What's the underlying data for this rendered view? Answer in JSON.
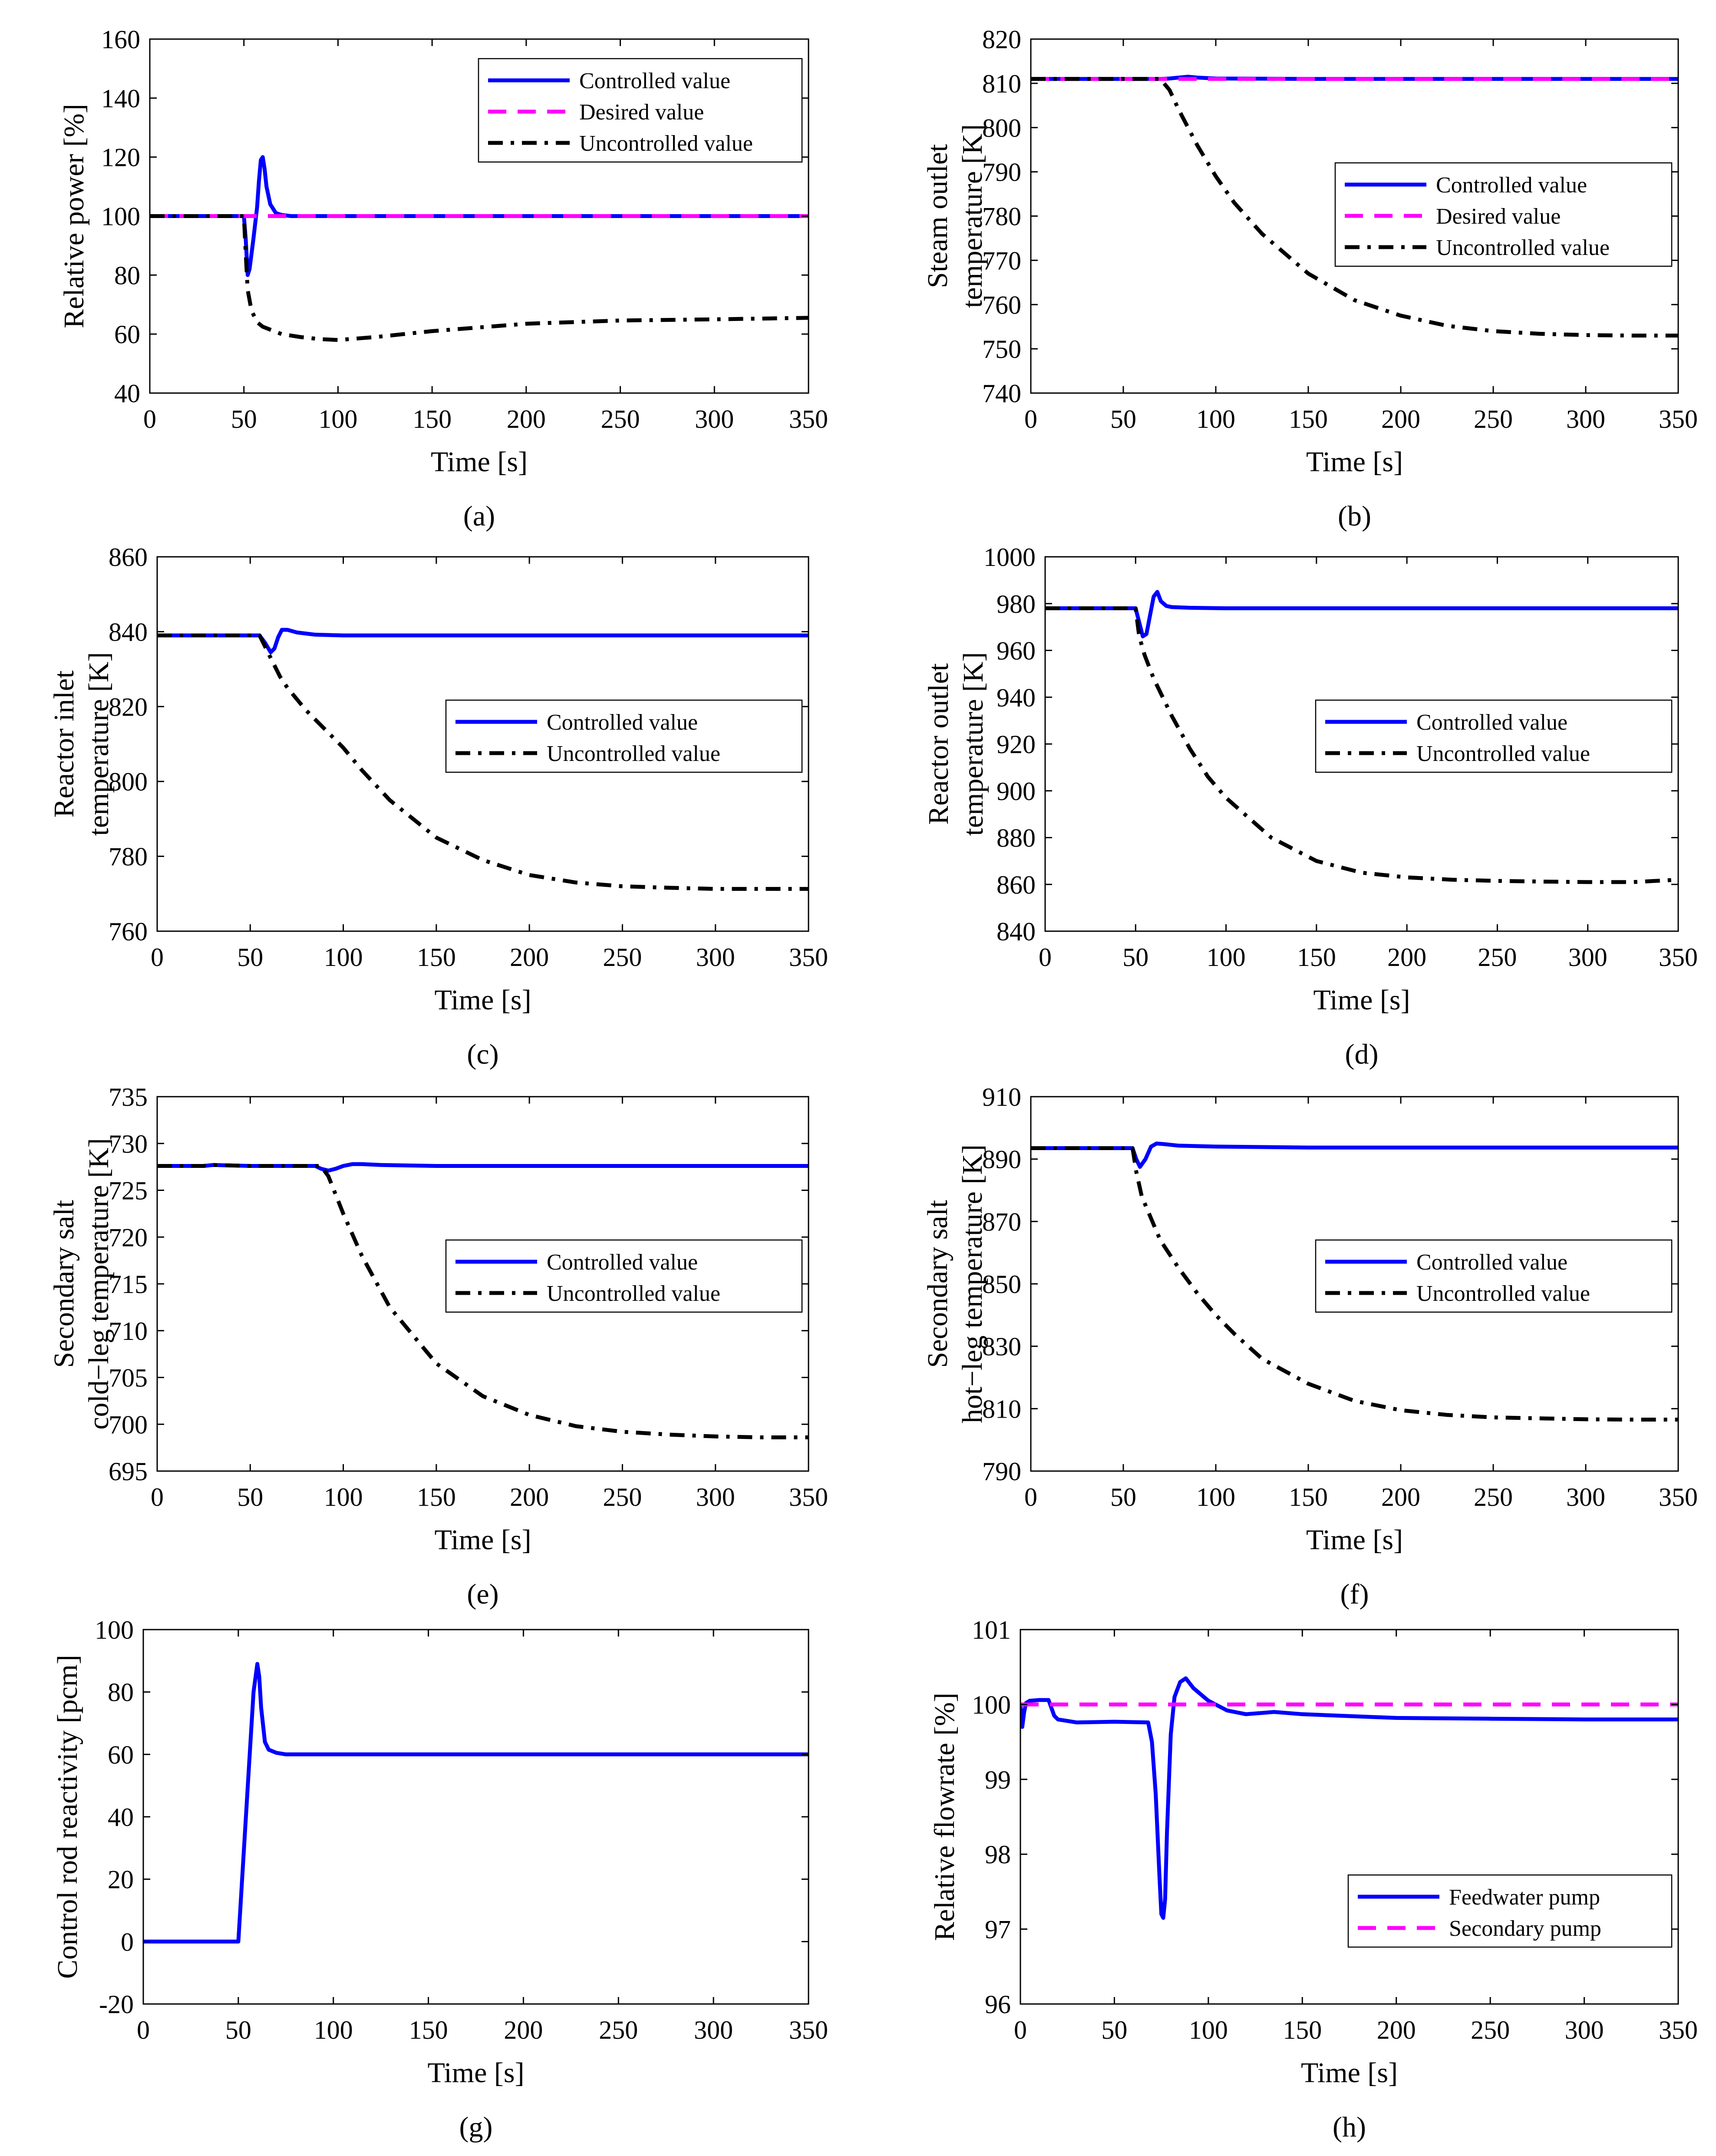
{
  "chart_data": [
    {
      "id": "a",
      "type": "line",
      "caption": "(a)",
      "xlabel": "Time [s]",
      "ylabel": [
        "Relative power [%]"
      ],
      "xlim": [
        0,
        350
      ],
      "ylim": [
        40,
        160
      ],
      "xticks": [
        0,
        50,
        100,
        150,
        200,
        250,
        300,
        350
      ],
      "yticks": [
        40,
        60,
        80,
        100,
        120,
        140,
        160
      ],
      "legend_position": "top-right",
      "series": [
        {
          "name": "Controlled value",
          "color": "#0000ff",
          "style": "solid",
          "x": [
            0,
            50,
            51,
            52,
            53,
            55,
            57,
            58,
            59,
            60,
            61,
            62,
            64,
            67,
            70,
            75,
            80,
            100,
            350
          ],
          "y": [
            100,
            100,
            92,
            80,
            82,
            92,
            103,
            112,
            119,
            120,
            116,
            110,
            104,
            101,
            100.4,
            100,
            100,
            100,
            100
          ]
        },
        {
          "name": "Desired value",
          "color": "#ff00ff",
          "style": "dashed",
          "x": [
            0,
            350
          ],
          "y": [
            100,
            100
          ]
        },
        {
          "name": "Uncontrolled value",
          "color": "#000000",
          "style": "dashdot",
          "x": [
            0,
            50,
            51,
            52,
            54,
            57,
            60,
            70,
            80,
            90,
            100,
            120,
            150,
            200,
            250,
            300,
            350
          ],
          "y": [
            100,
            100,
            87,
            75,
            68,
            64,
            62.5,
            60,
            59,
            58.3,
            58,
            59,
            61,
            63.5,
            64.6,
            65,
            65.5
          ]
        }
      ]
    },
    {
      "id": "b",
      "type": "line",
      "caption": "(b)",
      "xlabel": "Time [s]",
      "ylabel": [
        "Steam outlet",
        "temperature [K]"
      ],
      "xlim": [
        0,
        350
      ],
      "ylim": [
        740,
        820
      ],
      "xticks": [
        0,
        50,
        100,
        150,
        200,
        250,
        300,
        350
      ],
      "yticks": [
        740,
        750,
        760,
        770,
        780,
        790,
        800,
        810,
        820
      ],
      "legend_position": "middle-right",
      "series": [
        {
          "name": "Controlled value",
          "color": "#0000ff",
          "style": "solid",
          "x": [
            0,
            70,
            75,
            80,
            85,
            90,
            100,
            150,
            350
          ],
          "y": [
            811,
            811,
            811.1,
            811.3,
            811.5,
            811.3,
            811.1,
            811,
            811
          ]
        },
        {
          "name": "Desired value",
          "color": "#ff00ff",
          "style": "dashed",
          "x": [
            0,
            350
          ],
          "y": [
            811,
            811
          ]
        },
        {
          "name": "Uncontrolled value",
          "color": "#000000",
          "style": "dashdot",
          "x": [
            0,
            70,
            75,
            80,
            90,
            100,
            110,
            125,
            150,
            175,
            200,
            225,
            250,
            275,
            300,
            325,
            350
          ],
          "y": [
            811,
            811,
            808.5,
            804,
            796,
            789,
            783,
            776,
            767,
            761,
            757.5,
            755.2,
            754,
            753.4,
            753.1,
            753,
            753
          ]
        }
      ]
    },
    {
      "id": "c",
      "type": "line",
      "caption": "(c)",
      "xlabel": "Time [s]",
      "ylabel": [
        "Reactor inlet",
        "temperature [K]"
      ],
      "xlim": [
        0,
        350
      ],
      "ylim": [
        760,
        860
      ],
      "xticks": [
        0,
        50,
        100,
        150,
        200,
        250,
        300,
        350
      ],
      "yticks": [
        760,
        780,
        800,
        820,
        840,
        860
      ],
      "legend_position": "middle-right",
      "series": [
        {
          "name": "Controlled value",
          "color": "#0000ff",
          "style": "solid",
          "x": [
            0,
            55,
            58,
            61,
            63,
            65,
            67,
            70,
            75,
            85,
            100,
            350
          ],
          "y": [
            839,
            839,
            837,
            834.5,
            835.5,
            838.5,
            840.5,
            840.5,
            839.8,
            839.2,
            839,
            839
          ]
        },
        {
          "name": "Uncontrolled value",
          "color": "#000000",
          "style": "dashdot",
          "x": [
            0,
            55,
            58,
            62,
            66,
            70,
            80,
            90,
            100,
            110,
            125,
            150,
            175,
            200,
            225,
            250,
            275,
            300,
            350
          ],
          "y": [
            839,
            839,
            836,
            832,
            828,
            825,
            819,
            814,
            809,
            803,
            795,
            785,
            779,
            775,
            773,
            772,
            771.6,
            771.3,
            771.3
          ]
        }
      ]
    },
    {
      "id": "d",
      "type": "line",
      "caption": "(d)",
      "xlabel": "Time [s]",
      "ylabel": [
        "Reactor outlet",
        "temperature [K]"
      ],
      "xlim": [
        0,
        350
      ],
      "ylim": [
        840,
        1000
      ],
      "xticks": [
        0,
        50,
        100,
        150,
        200,
        250,
        300,
        350
      ],
      "yticks": [
        840,
        860,
        880,
        900,
        920,
        940,
        960,
        980,
        1000
      ],
      "legend_position": "middle-right",
      "series": [
        {
          "name": "Controlled value",
          "color": "#0000ff",
          "style": "solid",
          "x": [
            0,
            50,
            52,
            54,
            56,
            58,
            60,
            62,
            64,
            67,
            70,
            80,
            100,
            350
          ],
          "y": [
            978,
            978,
            972,
            966,
            967,
            975,
            983,
            985,
            981,
            979,
            978.5,
            978.2,
            978,
            978
          ]
        },
        {
          "name": "Uncontrolled value",
          "color": "#000000",
          "style": "dashdot",
          "x": [
            0,
            50,
            52,
            55,
            60,
            70,
            80,
            90,
            100,
            125,
            150,
            175,
            200,
            225,
            250,
            275,
            300,
            325,
            350
          ],
          "y": [
            978,
            978,
            966,
            958,
            948,
            932,
            918,
            906,
            897,
            880,
            870,
            865,
            863,
            862,
            861.5,
            861.2,
            861,
            861,
            862
          ]
        }
      ]
    },
    {
      "id": "e",
      "type": "line",
      "caption": "(e)",
      "xlabel": "Time [s]",
      "ylabel": [
        "Secondary salt",
        "cold−leg temperature [K]"
      ],
      "xlim": [
        0,
        350
      ],
      "ylim": [
        695,
        735
      ],
      "xticks": [
        0,
        50,
        100,
        150,
        200,
        250,
        300,
        350
      ],
      "yticks": [
        695,
        700,
        705,
        710,
        715,
        720,
        725,
        730,
        735
      ],
      "legend_position": "middle-right",
      "series": [
        {
          "name": "Controlled value",
          "color": "#0000ff",
          "style": "solid",
          "x": [
            0,
            25,
            30,
            50,
            85,
            88,
            92,
            96,
            100,
            105,
            110,
            120,
            150,
            350
          ],
          "y": [
            727.6,
            727.6,
            727.7,
            727.6,
            727.6,
            727.3,
            727.1,
            727.3,
            727.6,
            727.8,
            727.8,
            727.7,
            727.6,
            727.6
          ]
        },
        {
          "name": "Uncontrolled value",
          "color": "#000000",
          "style": "dashdot",
          "x": [
            0,
            25,
            30,
            50,
            88,
            92,
            95,
            100,
            110,
            125,
            150,
            175,
            200,
            225,
            250,
            275,
            300,
            325,
            350
          ],
          "y": [
            727.6,
            727.6,
            727.7,
            727.6,
            727.6,
            726.5,
            725,
            722.5,
            718,
            712.5,
            706.5,
            703,
            701,
            699.8,
            699.2,
            698.9,
            698.7,
            698.6,
            698.6
          ]
        }
      ]
    },
    {
      "id": "f",
      "type": "line",
      "caption": "(f)",
      "xlabel": "Time [s]",
      "ylabel": [
        "Secondary salt",
        "hot−leg temperature [K]"
      ],
      "xlim": [
        0,
        350
      ],
      "ylim": [
        790,
        910
      ],
      "xticks": [
        0,
        50,
        100,
        150,
        200,
        250,
        300,
        350
      ],
      "yticks": [
        790,
        810,
        830,
        850,
        870,
        890,
        910
      ],
      "legend_position": "middle-right",
      "series": [
        {
          "name": "Controlled value",
          "color": "#0000ff",
          "style": "solid",
          "x": [
            0,
            55,
            57,
            59,
            62,
            65,
            68,
            72,
            80,
            100,
            150,
            350
          ],
          "y": [
            893.5,
            893.5,
            890,
            887.5,
            890,
            894,
            895,
            894.8,
            894.3,
            894,
            893.7,
            893.7
          ]
        },
        {
          "name": "Uncontrolled value",
          "color": "#000000",
          "style": "dashdot",
          "x": [
            0,
            55,
            57,
            60,
            65,
            70,
            80,
            90,
            100,
            110,
            125,
            150,
            175,
            200,
            225,
            250,
            275,
            300,
            325,
            350
          ],
          "y": [
            893.5,
            893.5,
            886,
            878,
            871,
            864,
            855,
            847,
            840,
            834,
            826,
            818,
            812.5,
            809.5,
            808,
            807.2,
            806.9,
            806.6,
            806.5,
            806.5
          ]
        }
      ]
    },
    {
      "id": "g",
      "type": "line",
      "caption": "(g)",
      "xlabel": "Time [s]",
      "ylabel": [
        "Control rod reactivity [pcm]"
      ],
      "xlim": [
        0,
        350
      ],
      "ylim": [
        -20,
        100
      ],
      "xticks": [
        0,
        50,
        100,
        150,
        200,
        250,
        300,
        350
      ],
      "yticks": [
        -20,
        0,
        20,
        40,
        60,
        80,
        100
      ],
      "legend_position": "none",
      "series": [
        {
          "name": "Control rod reactivity",
          "color": "#0000ff",
          "style": "solid",
          "x": [
            0,
            50,
            52,
            55,
            58,
            60,
            61,
            62,
            64,
            66,
            70,
            75,
            80,
            350
          ],
          "y": [
            0,
            0,
            20,
            50,
            80,
            89,
            85,
            75,
            64,
            61.5,
            60.5,
            60,
            60,
            60
          ]
        }
      ]
    },
    {
      "id": "h",
      "type": "line",
      "caption": "(h)",
      "xlabel": "Time [s]",
      "ylabel": [
        "Relative flowrate [%]"
      ],
      "xlim": [
        0,
        350
      ],
      "ylim": [
        96,
        101
      ],
      "xticks": [
        0,
        50,
        100,
        150,
        200,
        250,
        300,
        350
      ],
      "yticks": [
        96,
        97,
        98,
        99,
        100,
        101
      ],
      "legend_position": "bottom-right",
      "series": [
        {
          "name": "Feedwater pump",
          "color": "#0000ff",
          "style": "solid",
          "x": [
            0,
            1,
            2,
            3,
            5,
            10,
            15,
            18,
            20,
            25,
            30,
            50,
            68,
            70,
            72,
            74,
            75,
            76,
            77,
            78,
            80,
            82,
            85,
            88,
            92,
            100,
            110,
            120,
            135,
            150,
            200,
            250,
            300,
            350
          ],
          "y": [
            100,
            99.7,
            99.9,
            100.02,
            100.05,
            100.06,
            100.06,
            99.85,
            99.8,
            99.78,
            99.76,
            99.77,
            99.76,
            99.5,
            98.8,
            97.7,
            97.2,
            97.15,
            97.4,
            98.3,
            99.6,
            100.1,
            100.3,
            100.35,
            100.22,
            100.05,
            99.92,
            99.87,
            99.9,
            99.87,
            99.82,
            99.81,
            99.8,
            99.8
          ]
        },
        {
          "name": "Secondary pump",
          "color": "#ff00ff",
          "style": "dashed",
          "x": [
            0,
            350
          ],
          "y": [
            100,
            100
          ]
        }
      ]
    }
  ]
}
